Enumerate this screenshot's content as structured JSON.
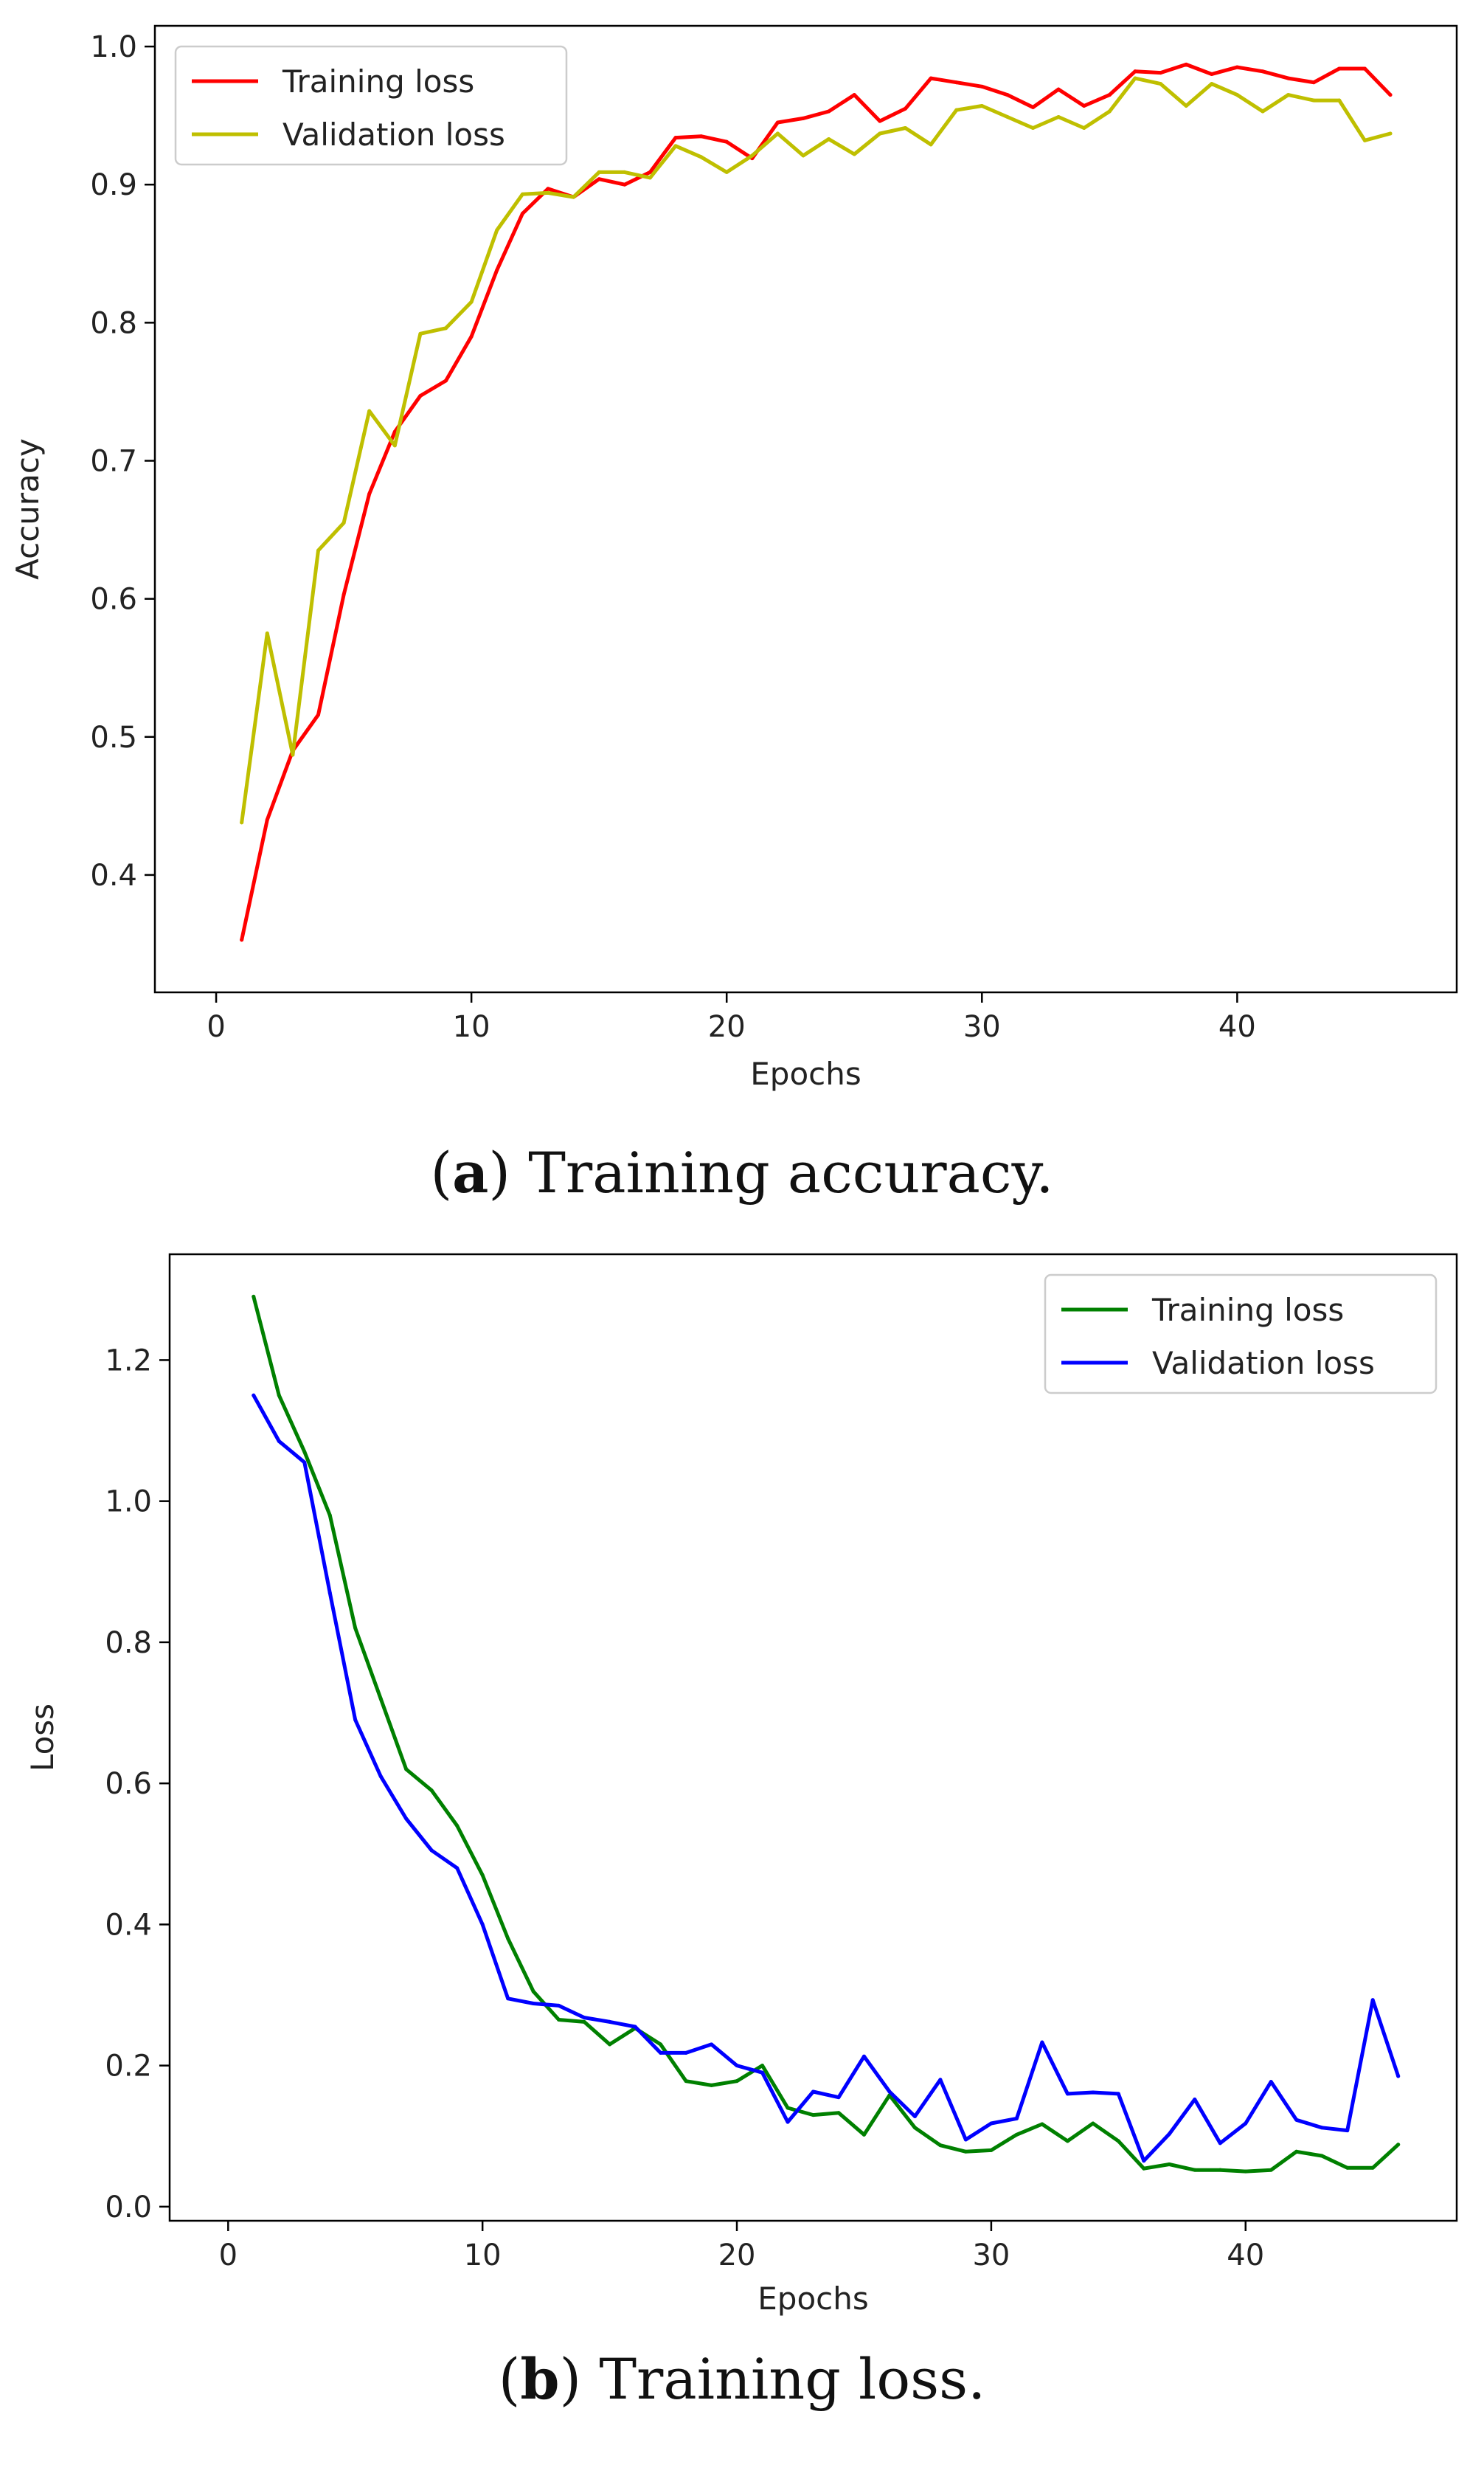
{
  "chart_data": [
    {
      "id": "a",
      "type": "line",
      "xlabel": "Epochs",
      "ylabel": "Accuracy",
      "xlim": [
        -2.4,
        48.6
      ],
      "ylim": [
        0.315,
        1.015
      ],
      "xticks": [
        0,
        10,
        20,
        30,
        40
      ],
      "yticks": [
        0.4,
        0.5,
        0.6,
        0.7,
        0.8,
        0.9,
        1.0
      ],
      "ytick_labels": [
        "0.4",
        "0.5",
        "0.6",
        "0.7",
        "0.8",
        "0.9",
        "1.0"
      ],
      "legend_position": "top-left",
      "series": [
        {
          "name": "Training loss",
          "color": "#ff0000",
          "x": [
            1,
            2,
            3,
            4,
            5,
            6,
            7,
            8,
            9,
            10,
            11,
            12,
            13,
            14,
            15,
            16,
            17,
            18,
            19,
            20,
            21,
            22,
            23,
            24,
            25,
            26,
            27,
            28,
            29,
            30,
            31,
            32,
            33,
            34,
            35,
            36,
            37,
            38,
            39,
            40,
            41,
            42,
            43,
            44,
            45,
            46
          ],
          "values": [
            0.353,
            0.44,
            0.49,
            0.516,
            0.603,
            0.676,
            0.721,
            0.747,
            0.758,
            0.79,
            0.838,
            0.879,
            0.897,
            0.891,
            0.904,
            0.9,
            0.909,
            0.934,
            0.935,
            0.931,
            0.919,
            0.945,
            0.948,
            0.953,
            0.965,
            0.946,
            0.955,
            0.977,
            0.974,
            0.971,
            0.965,
            0.956,
            0.969,
            0.957,
            0.965,
            0.982,
            0.981,
            0.987,
            0.98,
            0.985,
            0.982,
            0.977,
            0.974,
            0.984,
            0.984,
            0.965
          ]
        },
        {
          "name": "Validation loss",
          "color": "#bfbf00",
          "x": [
            1,
            2,
            3,
            4,
            5,
            6,
            7,
            8,
            9,
            10,
            11,
            12,
            13,
            14,
            15,
            16,
            17,
            18,
            19,
            20,
            21,
            22,
            23,
            24,
            25,
            26,
            27,
            28,
            29,
            30,
            31,
            32,
            33,
            34,
            35,
            36,
            37,
            38,
            39,
            40,
            41,
            42,
            43,
            44,
            45,
            46
          ],
          "values": [
            0.438,
            0.575,
            0.487,
            0.635,
            0.655,
            0.736,
            0.711,
            0.792,
            0.796,
            0.815,
            0.867,
            0.893,
            0.894,
            0.891,
            0.909,
            0.909,
            0.905,
            0.928,
            0.92,
            0.909,
            0.921,
            0.937,
            0.921,
            0.933,
            0.922,
            0.937,
            0.941,
            0.929,
            0.954,
            0.957,
            0.949,
            0.941,
            0.949,
            0.941,
            0.953,
            0.977,
            0.973,
            0.957,
            0.973,
            0.965,
            0.953,
            0.965,
            0.961,
            0.961,
            0.932,
            0.937
          ]
        }
      ]
    },
    {
      "id": "b",
      "type": "line",
      "xlabel": "Epochs",
      "ylabel": "Loss",
      "xlim": [
        -2.3,
        48.3
      ],
      "ylim": [
        -0.02,
        1.35
      ],
      "xticks": [
        0,
        10,
        20,
        30,
        40
      ],
      "yticks": [
        0.0,
        0.2,
        0.4,
        0.6,
        0.8,
        1.0,
        1.2
      ],
      "ytick_labels": [
        "0.0",
        "0.2",
        "0.4",
        "0.6",
        "0.8",
        "1.0",
        "1.2"
      ],
      "legend_position": "top-right",
      "series": [
        {
          "name": "Training loss",
          "color": "#008000",
          "x": [
            1,
            2,
            3,
            4,
            5,
            6,
            7,
            8,
            9,
            10,
            11,
            12,
            13,
            14,
            15,
            16,
            17,
            18,
            19,
            20,
            21,
            22,
            23,
            24,
            25,
            26,
            27,
            28,
            29,
            30,
            31,
            32,
            33,
            34,
            35,
            36,
            37,
            38,
            39,
            40,
            41,
            42,
            43,
            44,
            45,
            46
          ],
          "values": [
            1.29,
            1.15,
            1.07,
            0.98,
            0.82,
            0.72,
            0.62,
            0.59,
            0.54,
            0.47,
            0.38,
            0.305,
            0.265,
            0.262,
            0.23,
            0.253,
            0.23,
            0.178,
            0.172,
            0.178,
            0.2,
            0.14,
            0.13,
            0.133,
            0.102,
            0.158,
            0.112,
            0.087,
            0.078,
            0.08,
            0.102,
            0.117,
            0.093,
            0.118,
            0.093,
            0.054,
            0.06,
            0.052,
            0.052,
            0.05,
            0.052,
            0.078,
            0.072,
            0.055,
            0.055,
            0.088
          ]
        },
        {
          "name": "Validation loss",
          "color": "#0000ff",
          "x": [
            1,
            2,
            3,
            4,
            5,
            6,
            7,
            8,
            9,
            10,
            11,
            12,
            13,
            14,
            15,
            16,
            17,
            18,
            19,
            20,
            21,
            22,
            23,
            24,
            25,
            26,
            27,
            28,
            29,
            30,
            31,
            32,
            33,
            34,
            35,
            36,
            37,
            38,
            39,
            40,
            41,
            42,
            43,
            44,
            45,
            46
          ],
          "values": [
            1.15,
            1.085,
            1.055,
            0.87,
            0.69,
            0.61,
            0.55,
            0.505,
            0.48,
            0.4,
            0.295,
            0.288,
            0.285,
            0.268,
            0.262,
            0.255,
            0.218,
            0.218,
            0.23,
            0.2,
            0.19,
            0.12,
            0.163,
            0.155,
            0.213,
            0.163,
            0.128,
            0.18,
            0.095,
            0.118,
            0.125,
            0.233,
            0.16,
            0.162,
            0.16,
            0.065,
            0.103,
            0.152,
            0.09,
            0.118,
            0.177,
            0.123,
            0.112,
            0.108,
            0.293,
            0.185
          ]
        }
      ]
    }
  ],
  "captions": {
    "a_label": "a",
    "a_text": "Training accuracy.",
    "b_label": "b",
    "b_text": "Training loss."
  }
}
